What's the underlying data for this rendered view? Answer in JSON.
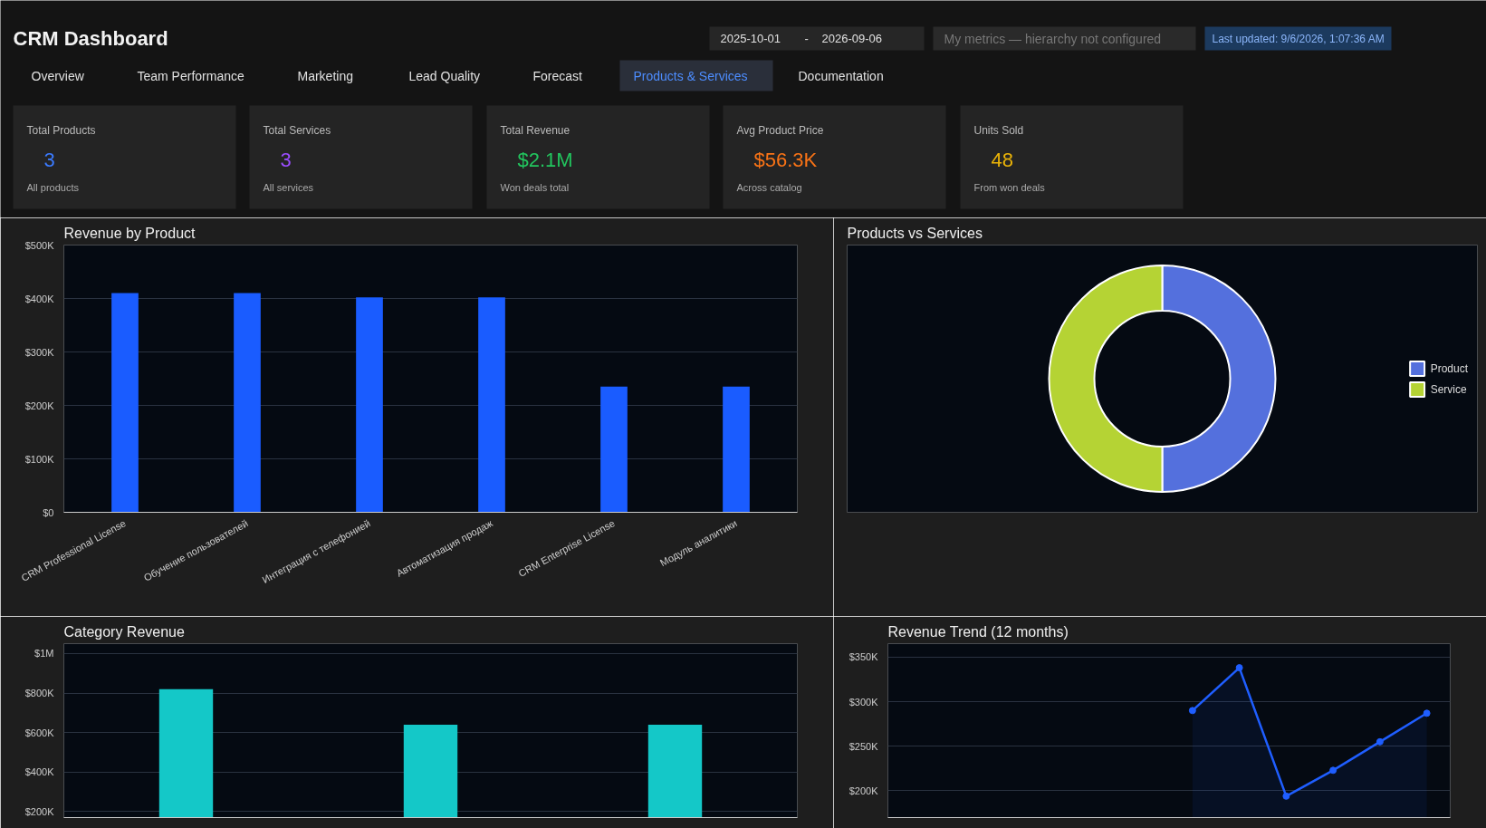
{
  "chart_data": [
    {
      "type": "other",
      "title": "CRM Dashboard",
      "annotations": [
        "2025-10-01",
        "-",
        "2026-09-06",
        "My metrics — hierarchy not configured",
        "Last updated: 9/6/2026, 1:07:36 AM",
        "Overview",
        "Team Performance",
        "Marketing",
        "Lead Quality",
        "Forecast",
        "Products & Services",
        "Documentation",
        "Total Products",
        "3",
        "All products",
        "Total Services",
        "3",
        "All services",
        "Total Revenue",
        "$2.1M",
        "Won deals total",
        "Avg Product Price",
        "$56.3K",
        "Across catalog",
        "Units Sold",
        "48",
        "From won deals"
      ]
    },
    {
      "type": "bar",
      "title": "Revenue by Product",
      "categories": [
        "CRM Professional License",
        "Обучение пользователей",
        "Интеграция с телефонией",
        "Автоматизация продаж",
        "CRM Enterprise License",
        "Модуль аналитики"
      ],
      "values": [
        410000,
        410000,
        402000,
        402000,
        235000,
        235000
      ],
      "color": "#1a5cff",
      "ylim": [
        0,
        500000
      ],
      "yticks": [
        {
          "value": 0,
          "label": "$0"
        },
        {
          "value": 100000,
          "label": "$100K"
        },
        {
          "value": 200000,
          "label": "$200K"
        },
        {
          "value": 300000,
          "label": "$300K"
        },
        {
          "value": 400000,
          "label": "$400K"
        },
        {
          "value": 500000,
          "label": "$500K"
        }
      ],
      "grid": "y"
    },
    {
      "type": "donut",
      "title": "Products vs Services",
      "categories": [
        "Product",
        "Service"
      ],
      "values": [
        50,
        50
      ],
      "colors": [
        "#5470dd",
        "#b5d334"
      ],
      "legend": "right"
    },
    {
      "type": "bar",
      "title": "Category Revenue",
      "categories": [
        null,
        null,
        null
      ],
      "values": [
        820000,
        640000,
        640000
      ],
      "color": "#14c8c8",
      "ylim": [
        170000,
        1050000
      ],
      "yticks": [
        {
          "value": 200000,
          "label": "$200K"
        },
        {
          "value": 400000,
          "label": "$400K"
        },
        {
          "value": 600000,
          "label": "$600K"
        },
        {
          "value": 800000,
          "label": "$800K"
        },
        {
          "value": 1000000,
          "label": "$1M"
        }
      ],
      "grid": "y"
    },
    {
      "type": "area",
      "title": "Revenue Trend (12 months)",
      "categories": [
        null,
        null,
        null,
        null,
        null,
        null,
        null,
        null,
        null,
        null,
        null,
        null
      ],
      "values": [
        null,
        null,
        null,
        null,
        null,
        null,
        290000,
        338000,
        194000,
        223000,
        255000,
        287000
      ],
      "color": "#1f5eff",
      "marker": "circle",
      "ylim": [
        170000,
        365000
      ],
      "yticks": [
        {
          "value": 200000,
          "label": "$200K"
        },
        {
          "value": 250000,
          "label": "$250K"
        },
        {
          "value": 300000,
          "label": "$300K"
        },
        {
          "value": 350000,
          "label": "$350K"
        }
      ],
      "grid": "y"
    }
  ]
}
